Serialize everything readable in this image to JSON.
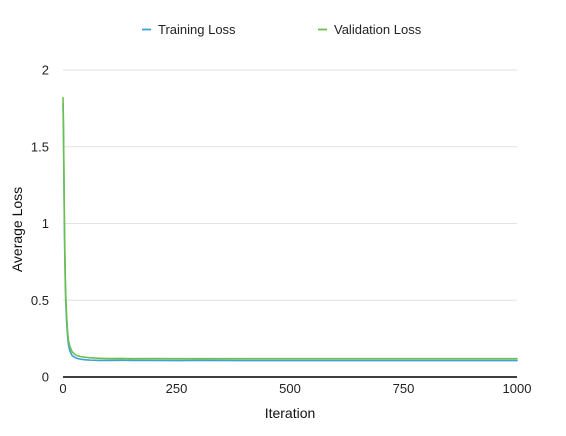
{
  "chart_data": {
    "type": "line",
    "title": "",
    "xlabel": "Iteration",
    "ylabel": "Average Loss",
    "xlim": [
      0,
      1000
    ],
    "ylim": [
      0,
      2
    ],
    "x_ticks": [
      0,
      250,
      500,
      750,
      1000
    ],
    "y_ticks": [
      0,
      0.5,
      1,
      1.5,
      2
    ],
    "x_tick_labels": [
      "0",
      "250",
      "500",
      "750",
      "1000"
    ],
    "y_tick_labels": [
      "0",
      "0.5",
      "1",
      "1.5",
      "2"
    ],
    "grid": "horizontal",
    "legend_position": "top",
    "series": [
      {
        "name": "Training Loss",
        "color": "#3fa0d8",
        "x": [
          0,
          1,
          2,
          3,
          4,
          5,
          6,
          8,
          10,
          12,
          15,
          20,
          25,
          30,
          40,
          50,
          60,
          80,
          100,
          130,
          150,
          200,
          250,
          300,
          400,
          500,
          600,
          700,
          800,
          900,
          1000
        ],
        "y": [
          1.78,
          1.6,
          1.3,
          1.0,
          0.78,
          0.62,
          0.5,
          0.36,
          0.27,
          0.21,
          0.17,
          0.14,
          0.13,
          0.122,
          0.115,
          0.112,
          0.11,
          0.108,
          0.108,
          0.109,
          0.108,
          0.108,
          0.107,
          0.108,
          0.107,
          0.107,
          0.107,
          0.107,
          0.107,
          0.107,
          0.107
        ]
      },
      {
        "name": "Validation Loss",
        "color": "#6cc04a",
        "x": [
          0,
          1,
          2,
          3,
          4,
          5,
          6,
          8,
          10,
          12,
          15,
          20,
          25,
          30,
          40,
          50,
          60,
          80,
          100,
          130,
          150,
          200,
          250,
          300,
          400,
          500,
          600,
          700,
          800,
          900,
          1000
        ],
        "y": [
          1.82,
          1.66,
          1.36,
          1.05,
          0.82,
          0.66,
          0.54,
          0.4,
          0.3,
          0.24,
          0.2,
          0.165,
          0.15,
          0.14,
          0.132,
          0.128,
          0.125,
          0.122,
          0.12,
          0.121,
          0.119,
          0.12,
          0.119,
          0.119,
          0.119,
          0.119,
          0.119,
          0.119,
          0.119,
          0.119,
          0.119
        ]
      }
    ]
  }
}
